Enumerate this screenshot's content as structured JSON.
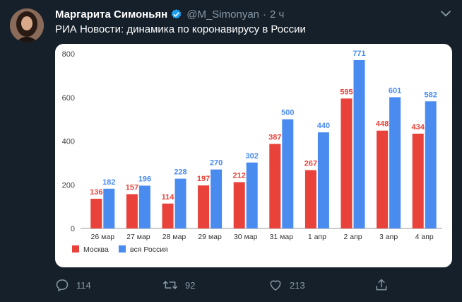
{
  "tweet": {
    "author_name": "Маргарита Симоньян",
    "handle": "@M_Simonyan",
    "separator": "·",
    "time": "2 ч",
    "text": "РИА Новости: динамика по коронавирусу в России"
  },
  "icons": {
    "verified": "verified-badge-icon",
    "more": "chevron-down-icon",
    "reply": "reply-icon",
    "retweet": "retweet-icon",
    "like": "heart-icon",
    "share": "share-icon"
  },
  "colors": {
    "background": "#15202b",
    "secondary_text": "#8899a6",
    "verified": "#1da1f2",
    "moscow": "#e8423a",
    "russia": "#4a8bf0"
  },
  "actions": {
    "reply_count": "114",
    "retweet_count": "92",
    "like_count": "213"
  },
  "chart_data": {
    "type": "bar",
    "categories": [
      "26 мар",
      "27 мар",
      "28 мар",
      "29 мар",
      "30 мар",
      "31 мар",
      "1 апр",
      "2 апр",
      "3 апр",
      "4 апр"
    ],
    "series": [
      {
        "name": "Москва",
        "values": [
          136,
          157,
          114,
          197,
          212,
          387,
          267,
          595,
          448,
          434
        ]
      },
      {
        "name": "вся Россия",
        "values": [
          182,
          196,
          228,
          270,
          302,
          500,
          440,
          771,
          601,
          582
        ]
      }
    ],
    "ylim": [
      0,
      800
    ],
    "yticks": [
      0,
      200,
      400,
      600,
      800
    ],
    "grid": false,
    "legend": "bottom-left"
  }
}
